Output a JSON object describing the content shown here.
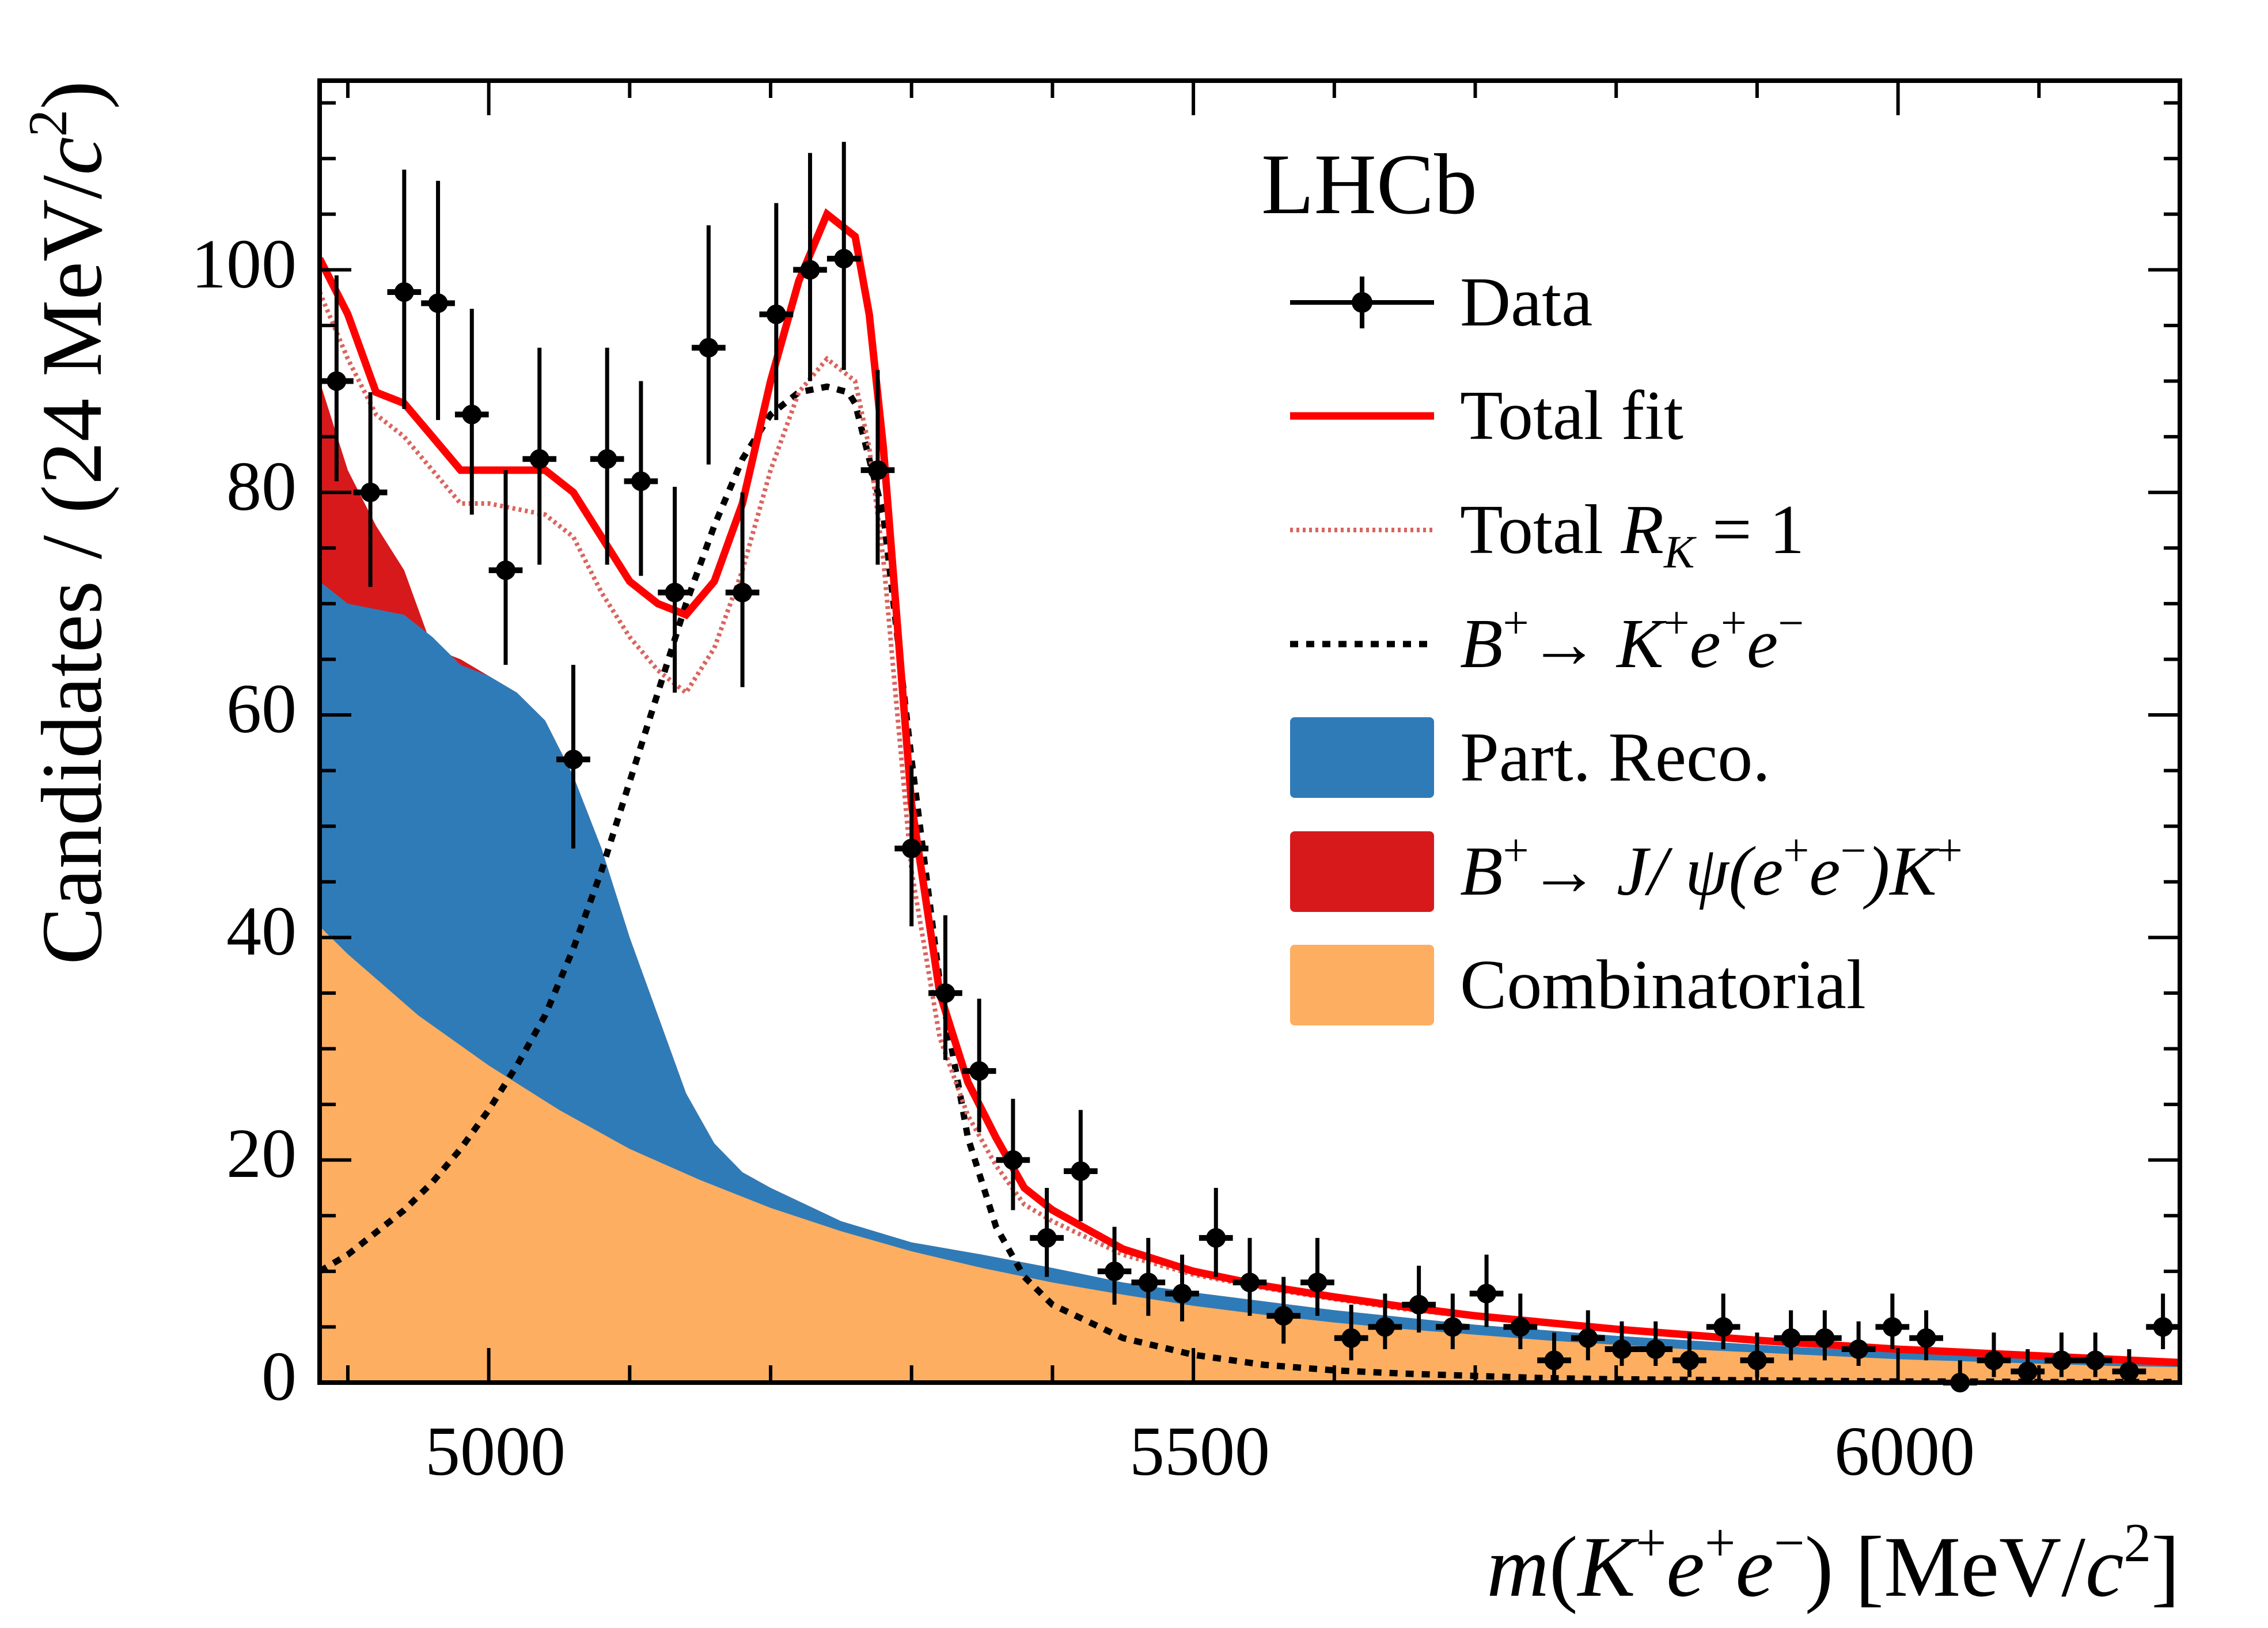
{
  "chart_data": {
    "type": "line",
    "experiment_label": "LHCb",
    "xlabel": {
      "m": "m",
      "open": "(",
      "K": "K",
      "e1": "e",
      "e2": "e",
      "close": ")",
      "units": "[MeV/",
      "c": "c",
      "sup": "2",
      "end": "]"
    },
    "ylabel": {
      "main": "Candidates / (24 MeV/",
      "c": "c",
      "sup": "2",
      "end": ")"
    },
    "xlim": [
      4880,
      6200
    ],
    "ylim": [
      0,
      117
    ],
    "x_ticks": [
      5000,
      5500,
      6000
    ],
    "y_ticks": [
      0,
      20,
      40,
      60,
      80,
      100
    ],
    "x_tick_labels": [
      "5000",
      "5500",
      "6000"
    ],
    "y_tick_labels": [
      "0",
      "20",
      "40",
      "60",
      "80",
      "100"
    ],
    "legend": {
      "position": "top-right",
      "data": "Data",
      "total_fit": "Total fit",
      "total_rk_main": "Total ",
      "total_rk_R": "R",
      "total_rk_sub": "K",
      "total_rk_val": " = 1",
      "signal_B": "B",
      "signal_K": "K",
      "signal_e1": "e",
      "signal_e2": "e",
      "part_reco": "Part. Reco.",
      "jpsi_B": "B",
      "jpsi_J": "J/ ψ",
      "jpsi_e1": "(e",
      "jpsi_e2": "e",
      "jpsi_K": ")K",
      "combinatorial": "Combinatorial"
    },
    "colors": {
      "total_fit": "#ff0000",
      "total_rk1": "#d9655f",
      "signal": "#000000",
      "part_reco": "#2f7bb8",
      "jpsi": "#d7191c",
      "combinatorial": "#fdae61",
      "data": "#000000"
    },
    "data_points": {
      "x": [
        4892,
        4916,
        4940,
        4964,
        4988,
        5012,
        5036,
        5060,
        5084,
        5108,
        5132,
        5156,
        5180,
        5204,
        5228,
        5252,
        5276,
        5300,
        5324,
        5348,
        5372,
        5396,
        5420,
        5444,
        5468,
        5492,
        5516,
        5540,
        5564,
        5588,
        5612,
        5636,
        5660,
        5684,
        5708,
        5732,
        5756,
        5780,
        5804,
        5828,
        5852,
        5876,
        5900,
        5924,
        5948,
        5972,
        5996,
        6020,
        6044,
        6068,
        6092,
        6116,
        6140,
        6164,
        6188
      ],
      "y": [
        90,
        80,
        98,
        97,
        87,
        73,
        83,
        56,
        83,
        81,
        71,
        93,
        71,
        96,
        100,
        101,
        82,
        48,
        35,
        28,
        20,
        13,
        19,
        10,
        9,
        8,
        13,
        9,
        6,
        9,
        4,
        5,
        7,
        5,
        8,
        5,
        2,
        4,
        3,
        3,
        2,
        5,
        2,
        4,
        4,
        3,
        5,
        4,
        0,
        2,
        1,
        2,
        2,
        1,
        5
      ],
      "y_err_up": [
        9.5,
        9,
        11,
        11,
        9.5,
        9,
        10,
        8.5,
        10,
        9,
        9.5,
        11,
        9,
        10,
        10.5,
        10.5,
        9,
        7.5,
        7,
        6.5,
        5.5,
        4.5,
        5.5,
        4,
        4,
        3.5,
        4.5,
        4,
        3.5,
        4,
        3,
        3,
        3.5,
        3,
        3.5,
        3,
        2.5,
        2.5,
        2.5,
        2.5,
        2.5,
        3,
        2.5,
        2.5,
        2.5,
        2.5,
        3,
        2.5,
        2,
        2.5,
        2,
        2.5,
        2.5,
        2,
        3
      ],
      "y_err_down": [
        9,
        8.5,
        10.5,
        10.5,
        9,
        8.5,
        9.5,
        8,
        9.5,
        8.5,
        9,
        10.5,
        8.5,
        9.5,
        10,
        10,
        8.5,
        7,
        6,
        5.5,
        4.5,
        3.5,
        4.5,
        3,
        3,
        2.5,
        3.5,
        3,
        2.5,
        3,
        2,
        2,
        2.5,
        2,
        3,
        2,
        1.5,
        2,
        1.5,
        1.5,
        1.5,
        2,
        1.5,
        2,
        2,
        1.5,
        2,
        2,
        0,
        1.5,
        1,
        1.5,
        1.5,
        1,
        2
      ],
      "x_halfwidth": 12
    },
    "series": [
      {
        "name": "Total fit",
        "x": [
          4880,
          4900,
          4920,
          4940,
          4960,
          4980,
          5000,
          5020,
          5040,
          5060,
          5080,
          5100,
          5120,
          5140,
          5160,
          5180,
          5200,
          5220,
          5240,
          5260,
          5270,
          5280,
          5300,
          5320,
          5340,
          5360,
          5380,
          5400,
          5450,
          5500,
          5550,
          5600,
          5650,
          5700,
          5750,
          5800,
          5850,
          5900,
          5950,
          6000,
          6050,
          6100,
          6150,
          6200
        ],
        "y": [
          101,
          96,
          89,
          88,
          85,
          82,
          82,
          82,
          82,
          80,
          76,
          72,
          70,
          69,
          72,
          79,
          90,
          99,
          105,
          103,
          96,
          84,
          52,
          35,
          27,
          22,
          17.5,
          15.5,
          12,
          10,
          8.7,
          7.7,
          6.8,
          6,
          5.4,
          4.8,
          4.3,
          3.8,
          3.4,
          3,
          2.7,
          2.4,
          2.1,
          1.8
        ]
      },
      {
        "name": "Total R_K = 1",
        "x": [
          4880,
          4900,
          4920,
          4940,
          4960,
          4980,
          5000,
          5020,
          5040,
          5060,
          5080,
          5100,
          5120,
          5140,
          5160,
          5180,
          5200,
          5220,
          5240,
          5260,
          5270,
          5280,
          5300,
          5320,
          5340,
          5360,
          5380,
          5400,
          5450,
          5500,
          5550,
          5600,
          5650,
          5700,
          5750,
          5800,
          5850,
          5900,
          5950,
          6000,
          6050,
          6100,
          6150,
          6200
        ],
        "y": [
          98,
          92,
          87,
          85,
          82,
          79,
          79,
          78.5,
          78,
          76,
          71,
          67,
          64,
          62,
          66,
          73,
          82,
          89,
          92,
          90,
          84,
          74,
          46,
          31,
          24,
          19.5,
          16,
          14.5,
          11.5,
          9.7,
          8.5,
          7.5,
          6.6,
          5.9,
          5.3,
          4.7,
          4.2,
          3.7,
          3.3,
          2.9,
          2.6,
          2.3,
          2,
          1.7
        ]
      },
      {
        "name": "B+ → K+e+e−",
        "x": [
          4880,
          4900,
          4920,
          4940,
          4960,
          4980,
          5000,
          5020,
          5040,
          5060,
          5080,
          5100,
          5120,
          5140,
          5160,
          5180,
          5200,
          5220,
          5240,
          5255,
          5260,
          5280,
          5300,
          5320,
          5340,
          5360,
          5380,
          5400,
          5450,
          5500,
          5550,
          5600,
          5650,
          5700,
          5750,
          5800,
          5850,
          5900,
          5950,
          6000,
          6050,
          6100,
          6150,
          6200
        ],
        "y": [
          10,
          11.5,
          13.5,
          15.5,
          18,
          21,
          24.5,
          28.5,
          33,
          39,
          46,
          54,
          62,
          70,
          77,
          83,
          87,
          89,
          89.5,
          89,
          88,
          78,
          56,
          36,
          22,
          14,
          9.5,
          7,
          4,
          2.5,
          1.6,
          1.1,
          0.8,
          0.6,
          0.4,
          0.3,
          0.25,
          0.2,
          0.15,
          0.1,
          0.1,
          0.05,
          0.05,
          0.05
        ]
      },
      {
        "name": "Part. Reco.",
        "x": [
          4880,
          4900,
          4920,
          4940,
          4960,
          4980,
          5000,
          5020,
          5040,
          5060,
          5080,
          5100,
          5120,
          5140,
          5160,
          5180,
          5200,
          5250,
          5300,
          5350,
          5400,
          5450,
          5500,
          5600,
          5700,
          5800,
          5900,
          6000,
          6100,
          6200
        ],
        "y": [
          72,
          70,
          69.5,
          69,
          67,
          64.5,
          63.5,
          62,
          59.5,
          54.5,
          48,
          40,
          33,
          26,
          21.5,
          18.9,
          17.5,
          14.5,
          12.6,
          11.5,
          10.3,
          9,
          8.1,
          6.5,
          5.2,
          4.2,
          3.4,
          2.7,
          2.1,
          1.6
        ]
      },
      {
        "name": "B+ → J/ψ(e+e−)K+",
        "x": [
          4880,
          4900,
          4920,
          4940,
          4960,
          4980,
          5000,
          5020,
          5040,
          5060,
          5080,
          5100,
          5120,
          5140,
          5160,
          5180,
          5200,
          5250,
          5300,
          5350,
          5400,
          5450,
          5500,
          5600,
          5700,
          5800,
          5900,
          6000,
          6100,
          6200
        ],
        "y": [
          90,
          82,
          77,
          73,
          66,
          65,
          63.5,
          62,
          59.5,
          54.5,
          48,
          40,
          33,
          26,
          21.5,
          18.9,
          17.5,
          14.5,
          12.6,
          11.5,
          10.3,
          9,
          8.1,
          6.5,
          5.2,
          4.2,
          3.4,
          2.7,
          2.1,
          1.6
        ]
      },
      {
        "name": "Combinatorial",
        "x": [
          4880,
          4900,
          4950,
          5000,
          5050,
          5100,
          5150,
          5200,
          5250,
          5300,
          5350,
          5400,
          5450,
          5500,
          5550,
          5600,
          5650,
          5700,
          5750,
          5800,
          5850,
          5900,
          5950,
          6000,
          6050,
          6100,
          6150,
          6200
        ],
        "y": [
          41,
          38.5,
          33,
          28.5,
          24.5,
          21,
          18.2,
          15.7,
          13.6,
          11.8,
          10.3,
          9,
          7.9,
          6.9,
          6.1,
          5.4,
          4.8,
          4.3,
          3.8,
          3.4,
          3,
          2.7,
          2.4,
          2.1,
          1.9,
          1.7,
          1.5,
          1.4
        ]
      }
    ]
  }
}
